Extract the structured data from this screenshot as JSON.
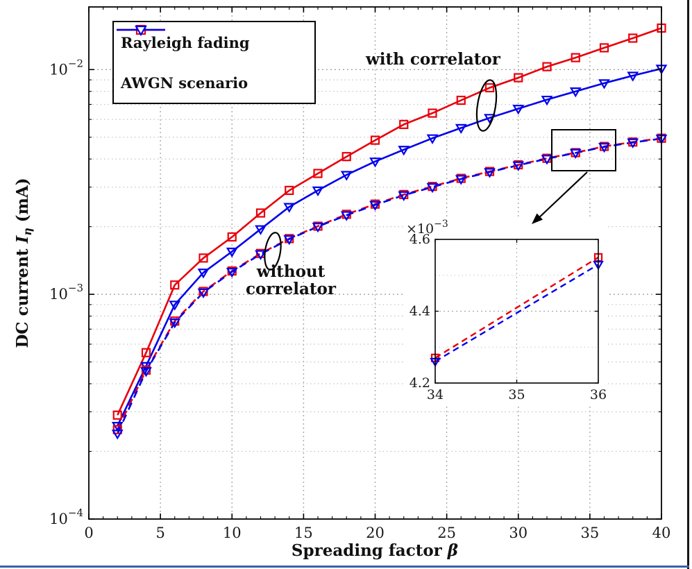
{
  "figure": {
    "background": "#ffffff",
    "right_edge_color": "#151515",
    "bottom_edge_color": "#3a5fae"
  },
  "chart_data": {
    "type": "line",
    "xlabel_text": "Spreading factor ",
    "xlabel_symbol": "β",
    "ylabel_text": "DC current ",
    "ylabel_var": "I",
    "ylabel_sub": "η",
    "ylabel_suffix": " (mA)",
    "x_range": [
      0,
      40
    ],
    "xticks": [
      0,
      5,
      10,
      15,
      20,
      25,
      30,
      35,
      40
    ],
    "y_scale": "log",
    "y_range": [
      0.0001,
      0.019
    ],
    "ytick_exponents": [
      -4,
      -3,
      -2
    ],
    "grid": true,
    "x": [
      2,
      4,
      6,
      8,
      10,
      12,
      14,
      16,
      18,
      20,
      22,
      24,
      26,
      28,
      30,
      32,
      34,
      36,
      38,
      40
    ],
    "series": [
      {
        "name": "Rayleigh fading (with correlator)",
        "color": "#e8000b",
        "style": "solid",
        "marker": "square",
        "values": [
          0.00029,
          0.00055,
          0.0011,
          0.00145,
          0.0018,
          0.0023,
          0.0029,
          0.00345,
          0.0041,
          0.00485,
          0.0057,
          0.0064,
          0.0073,
          0.0083,
          0.0092,
          0.0103,
          0.0113,
          0.0125,
          0.0138,
          0.0153
        ]
      },
      {
        "name": "AWGN scenario (with correlator)",
        "color": "#0000eb",
        "style": "solid",
        "marker": "triangle-down",
        "values": [
          0.00026,
          0.00048,
          0.0009,
          0.00125,
          0.00155,
          0.00195,
          0.00245,
          0.0029,
          0.0034,
          0.0039,
          0.0044,
          0.00495,
          0.0055,
          0.0061,
          0.0067,
          0.00735,
          0.008,
          0.0087,
          0.0094,
          0.0101
        ]
      },
      {
        "name": "Rayleigh fading (without correlator)",
        "color": "#e8000b",
        "style": "dashed",
        "marker": "square",
        "values": [
          0.00025,
          0.00046,
          0.00076,
          0.00103,
          0.00127,
          0.00152,
          0.00177,
          0.00201,
          0.00227,
          0.00252,
          0.00278,
          0.00302,
          0.00328,
          0.00352,
          0.00377,
          0.00403,
          0.00427,
          0.00455,
          0.00476,
          0.00495
        ]
      },
      {
        "name": "AWGN scenario (without correlator)",
        "color": "#0000eb",
        "style": "dashed",
        "marker": "triangle-down",
        "values": [
          0.00024,
          0.000455,
          0.00075,
          0.00102,
          0.00126,
          0.00151,
          0.00176,
          0.002,
          0.00225,
          0.0025,
          0.00276,
          0.003,
          0.00326,
          0.0035,
          0.00375,
          0.00401,
          0.00426,
          0.00453,
          0.00474,
          0.00493
        ]
      }
    ],
    "legend": {
      "position": "top-left",
      "entries": [
        {
          "label": "Rayleigh fading",
          "color": "#e8000b",
          "marker": "square"
        },
        {
          "label": "AWGN scenario",
          "color": "#0000eb",
          "marker": "triangle-down"
        }
      ]
    },
    "annotations": {
      "with_correlator": "with correlator",
      "without_line1": "without",
      "without_line2": "correlator"
    },
    "inset": {
      "x_range": [
        34,
        36
      ],
      "xticks": [
        34,
        35,
        36
      ],
      "y_range": [
        0.0042,
        0.0046
      ],
      "yticks": [
        0.0042,
        0.0044,
        0.0046
      ],
      "ytick_labels": [
        "4.2",
        "4.4",
        "4.6"
      ],
      "multiplier_base": "×10",
      "multiplier_exp": "−3",
      "series": [
        {
          "color": "#e8000b",
          "style": "dashed",
          "marker": "square",
          "points": [
            [
              34,
              0.00427
            ],
            [
              36,
              0.00455
            ]
          ]
        },
        {
          "color": "#0000eb",
          "style": "dashed",
          "marker": "triangle-down",
          "points": [
            [
              34,
              0.00426
            ],
            [
              36,
              0.00453
            ]
          ]
        }
      ]
    }
  }
}
